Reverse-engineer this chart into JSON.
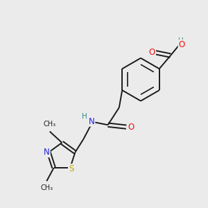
{
  "background_color": "#ebebeb",
  "bond_color": "#1a1a1a",
  "atom_colors": {
    "O": "#ee1111",
    "N": "#2222dd",
    "S": "#bbaa00",
    "H": "#338888",
    "C": "#1a1a1a"
  },
  "font_size_atoms": 8.5,
  "font_size_h": 7.5,
  "font_size_methyl": 7.0
}
